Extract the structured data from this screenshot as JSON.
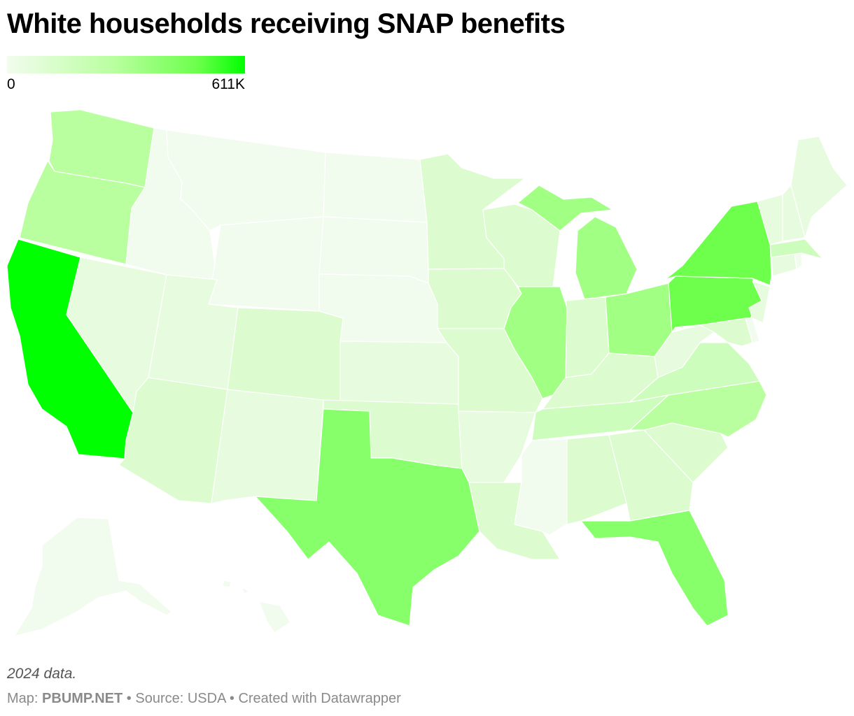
{
  "title": "White households receiving SNAP benefits",
  "legend": {
    "min_label": "0",
    "max_label": "611K",
    "min_color": "#f2fcee",
    "max_color": "#00ff00"
  },
  "note": "2024 data.",
  "credits": {
    "map_prefix": "Map: ",
    "map_source": "PBUMP.NET",
    "separator": " • ",
    "source": "Source: USDA",
    "created": "Created with Datawrapper"
  },
  "map_colors": {
    "lightest": "#f2fcee",
    "very_light": "#e7fbdf",
    "light": "#dcfccf",
    "light_mid": "#cdfdbc",
    "mid": "#b9ff9f",
    "mid_strong": "#a1ff83",
    "strong": "#86ff6a",
    "stronger": "#6dff4c",
    "max": "#00ff00"
  }
}
